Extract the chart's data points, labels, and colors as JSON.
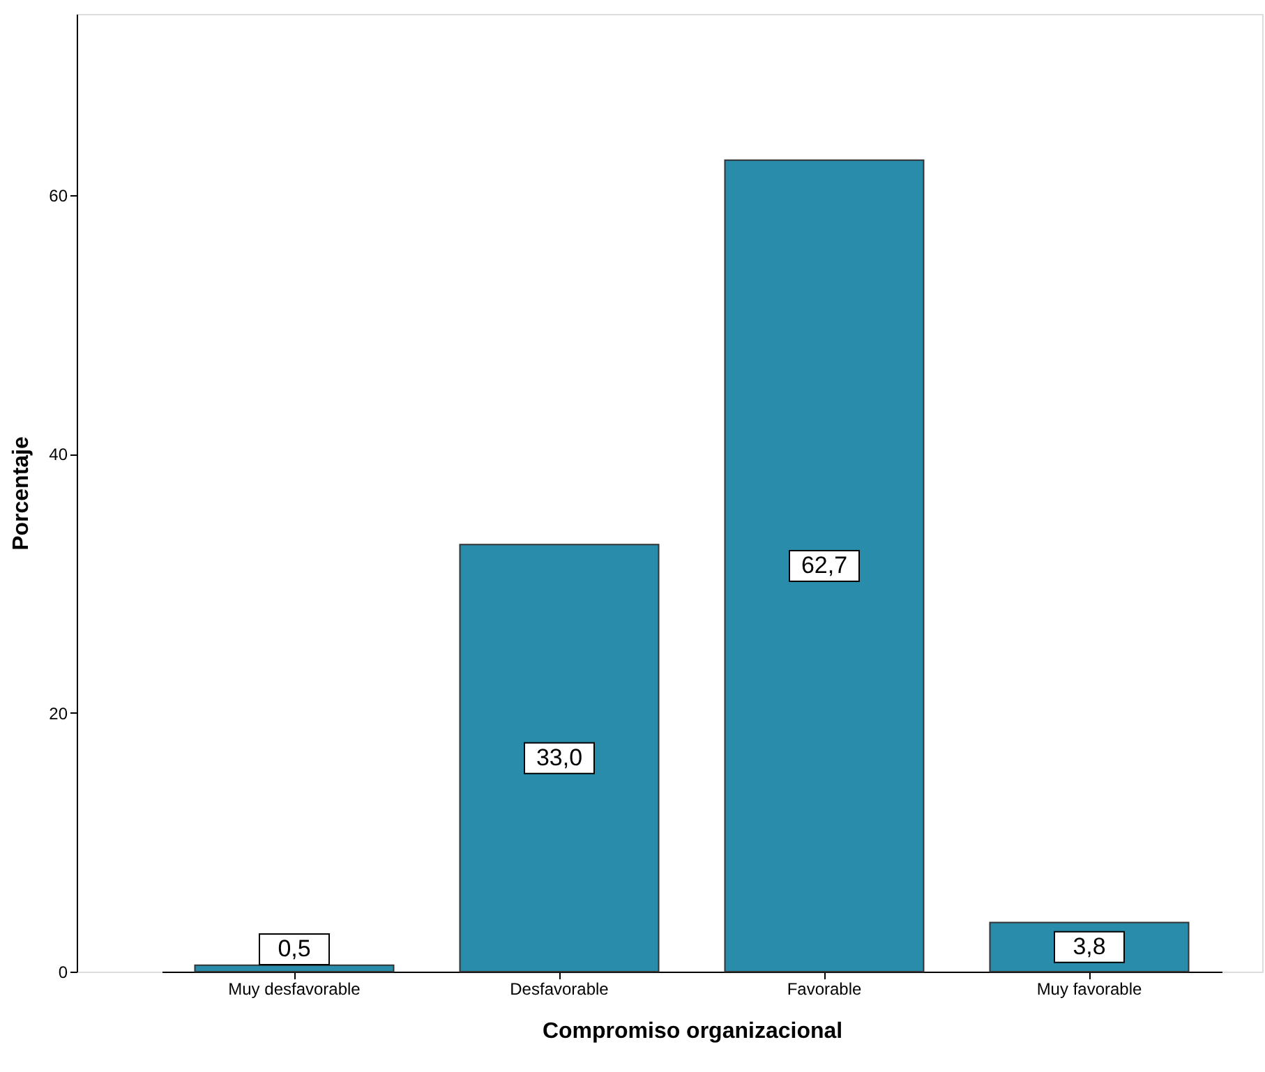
{
  "chart_data": {
    "type": "bar",
    "xlabel": "Compromiso organizacional",
    "ylabel": "Porcentaje",
    "categories": [
      "Muy desfavorable",
      "Desfavorable",
      "Favorable",
      "Muy favorable"
    ],
    "values": [
      0.5,
      33.0,
      62.7,
      3.8
    ],
    "value_labels": [
      "0,5",
      "33,0",
      "62,7",
      "3,8"
    ],
    "color": "#2a8cab",
    "ylim": [
      0,
      74
    ],
    "yticks": [
      0,
      20,
      40,
      60
    ],
    "grid": false
  }
}
